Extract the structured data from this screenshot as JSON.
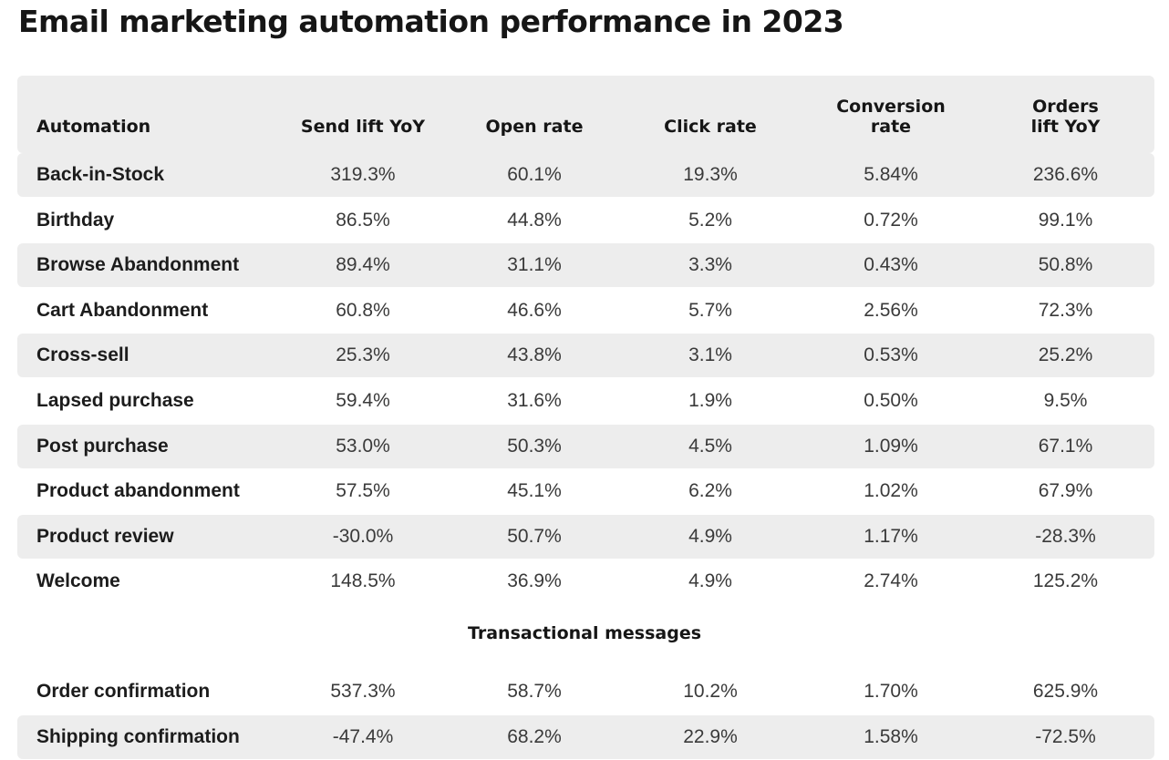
{
  "title": "Email marketing automation performance in 2023",
  "headers": [
    "Automation",
    "Send lift YoY",
    "Open rate",
    "Click rate",
    "Conversion\nrate",
    "Orders\nlift YoY"
  ],
  "rows": [
    {
      "name": "Back-in-Stock",
      "send_lift": "319.3%",
      "open": "60.1%",
      "click": "19.3%",
      "conversion": "5.84%",
      "orders_lift": "236.6%"
    },
    {
      "name": "Birthday",
      "send_lift": "86.5%",
      "open": "44.8%",
      "click": "5.2%",
      "conversion": "0.72%",
      "orders_lift": "99.1%"
    },
    {
      "name": "Browse Abandonment",
      "send_lift": "89.4%",
      "open": "31.1%",
      "click": "3.3%",
      "conversion": "0.43%",
      "orders_lift": "50.8%"
    },
    {
      "name": "Cart Abandonment",
      "send_lift": "60.8%",
      "open": "46.6%",
      "click": "5.7%",
      "conversion": "2.56%",
      "orders_lift": "72.3%"
    },
    {
      "name": "Cross-sell",
      "send_lift": "25.3%",
      "open": "43.8%",
      "click": "3.1%",
      "conversion": "0.53%",
      "orders_lift": "25.2%"
    },
    {
      "name": "Lapsed purchase",
      "send_lift": "59.4%",
      "open": "31.6%",
      "click": "1.9%",
      "conversion": "0.50%",
      "orders_lift": "9.5%"
    },
    {
      "name": "Post purchase",
      "send_lift": "53.0%",
      "open": "50.3%",
      "click": "4.5%",
      "conversion": "1.09%",
      "orders_lift": "67.1%"
    },
    {
      "name": "Product abandonment",
      "send_lift": "57.5%",
      "open": "45.1%",
      "click": "6.2%",
      "conversion": "1.02%",
      "orders_lift": "67.9%"
    },
    {
      "name": "Product review",
      "send_lift": "-30.0%",
      "open": "50.7%",
      "click": "4.9%",
      "conversion": "1.17%",
      "orders_lift": "-28.3%"
    },
    {
      "name": "Welcome",
      "send_lift": "148.5%",
      "open": "36.9%",
      "click": "4.9%",
      "conversion": "2.74%",
      "orders_lift": "125.2%"
    }
  ],
  "transactional_label": "Transactional messages",
  "transactional_rows": [
    {
      "name": "Order confirmation",
      "send_lift": "537.3%",
      "open": "58.7%",
      "click": "10.2%",
      "conversion": "1.70%",
      "orders_lift": "625.9%"
    },
    {
      "name": "Shipping confirmation",
      "send_lift": "-47.4%",
      "open": "68.2%",
      "click": "22.9%",
      "conversion": "1.58%",
      "orders_lift": "-72.5%"
    }
  ],
  "colors": {
    "row_alt": "#ededed",
    "text": "#1f1f1f"
  }
}
